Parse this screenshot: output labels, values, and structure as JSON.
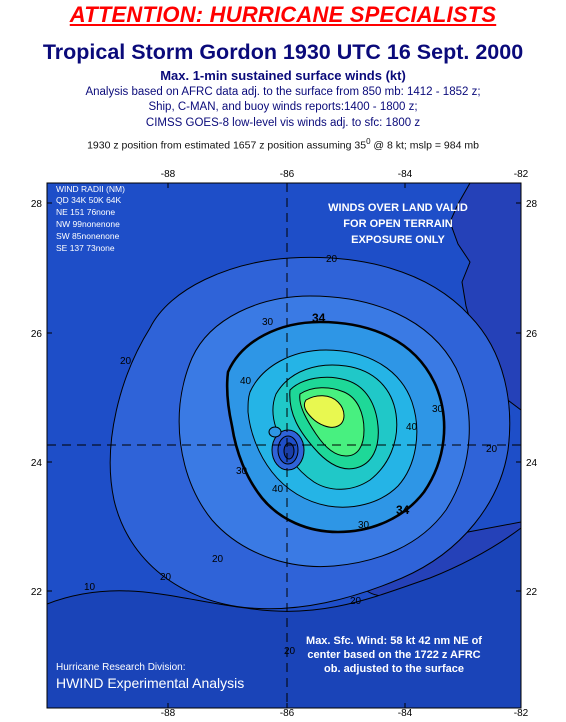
{
  "header": {
    "attention": "ATTENTION: HURRICANE SPECIALISTS",
    "title": "Tropical Storm Gordon 1930 UTC 16 Sept. 2000",
    "subtitle": "Max. 1-min sustained surface winds (kt)",
    "analysis_line1": "Analysis based on AFRC data adj. to the surface from 850 mb:  1412 - 1852 z;",
    "analysis_line2": "Ship, C-MAN, and buoy winds reports:1400 - 1800 z;",
    "analysis_line3": "CIMSS GOES-8 low-level vis winds adj. to sfc: 1800 z",
    "position_line_a": "1930 z position from estimated 1657 z position assuming 35",
    "position_sup": "0",
    "position_line_b": " @  8 kt; mslp = 984 mb"
  },
  "map": {
    "x_ticks": [
      "-88",
      "-86",
      "-84",
      "-82"
    ],
    "y_ticks": [
      "28",
      "26",
      "24",
      "22"
    ],
    "wind_radii": {
      "title": "WIND RADII (NM)",
      "header": "QD 34K 50K 64K",
      "rows": [
        "NE 151  76none",
        "NW  99nonenone",
        "SW  85nonenone",
        "SE 137  73none"
      ]
    },
    "land_note": [
      "WINDS OVER LAND VALID",
      "FOR OPEN TERRAIN",
      "EXPOSURE ONLY"
    ],
    "max_wind_note": [
      "Max. Sfc. Wind: 58 kt 42 nm NE of",
      "center based on the 1722 z AFRC",
      "ob. adjusted to the surface"
    ],
    "credit_line1": "Hurricane Research Division:",
    "credit_line2": "HWIND Experimental Analysis",
    "contour_labels": [
      "20",
      "30",
      "34",
      "40",
      "20",
      "30",
      "40",
      "20",
      "30",
      "34",
      "20",
      "30",
      "40",
      "10",
      "20",
      "20",
      "20"
    ],
    "colors": {
      "water": "#1e4ec8",
      "land": "#2541b8",
      "band10": "#2f63d8",
      "band20": "#3a7ae4",
      "band30": "#2e96e6",
      "band34": "#25b4e6",
      "band40": "#20c8c8",
      "band45": "#1ed898",
      "band50": "#48f080",
      "band55": "#a8f060",
      "band58": "#e8f850"
    }
  }
}
